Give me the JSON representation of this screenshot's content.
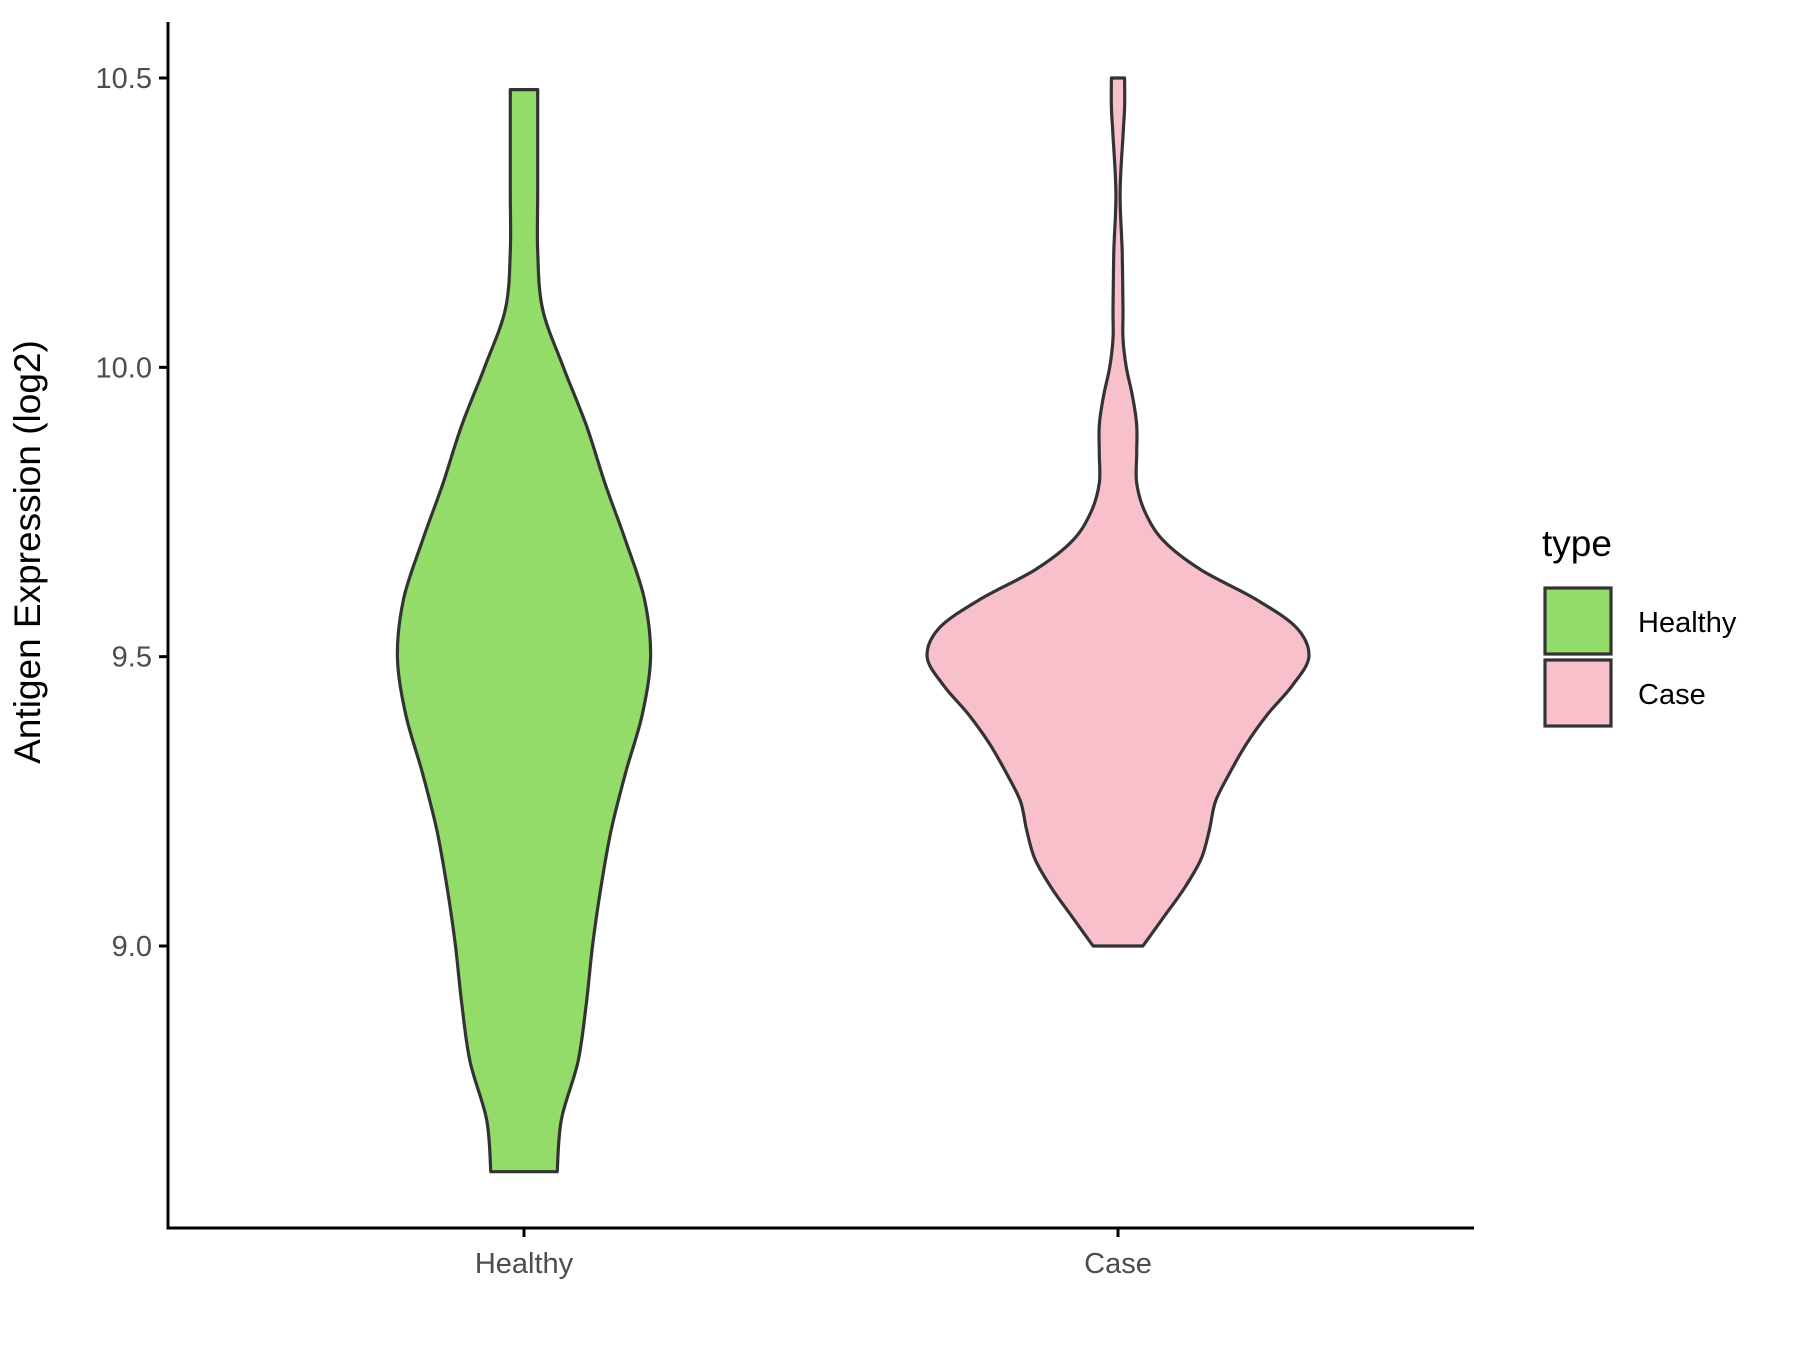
{
  "chart_data": {
    "type": "violin",
    "ylabel": "Antigen Expression (log2)",
    "xlabel": "",
    "ylim": [
      8.5,
      10.6
    ],
    "yticks": [
      "9.0",
      "9.5",
      "10.0",
      "10.5"
    ],
    "ytick_values": [
      9.0,
      9.5,
      10.0,
      10.5
    ],
    "categories": [
      "Healthy",
      "Case"
    ],
    "legend": {
      "title": "type",
      "position": "right",
      "entries": [
        "Healthy",
        "Case"
      ]
    },
    "grid": false,
    "series": [
      {
        "name": "Healthy",
        "color": "#93dc6a",
        "y_min": 8.61,
        "y_max": 10.48,
        "profile": [
          [
            8.61,
            0.08
          ],
          [
            8.7,
            0.09
          ],
          [
            8.8,
            0.13
          ],
          [
            8.9,
            0.15
          ],
          [
            9.0,
            0.165
          ],
          [
            9.1,
            0.185
          ],
          [
            9.2,
            0.21
          ],
          [
            9.3,
            0.245
          ],
          [
            9.4,
            0.285
          ],
          [
            9.5,
            0.305
          ],
          [
            9.6,
            0.29
          ],
          [
            9.7,
            0.245
          ],
          [
            9.8,
            0.195
          ],
          [
            9.9,
            0.15
          ],
          [
            10.0,
            0.095
          ],
          [
            10.1,
            0.045
          ],
          [
            10.2,
            0.033
          ],
          [
            10.3,
            0.033
          ],
          [
            10.4,
            0.033
          ],
          [
            10.48,
            0.033
          ]
        ]
      },
      {
        "name": "Case",
        "color": "#f8c0cb",
        "y_min": 9.0,
        "y_max": 10.5,
        "profile": [
          [
            9.0,
            0.06
          ],
          [
            9.05,
            0.11
          ],
          [
            9.1,
            0.16
          ],
          [
            9.15,
            0.2
          ],
          [
            9.2,
            0.22
          ],
          [
            9.25,
            0.235
          ],
          [
            9.3,
            0.27
          ],
          [
            9.35,
            0.31
          ],
          [
            9.4,
            0.36
          ],
          [
            9.45,
            0.42
          ],
          [
            9.5,
            0.46
          ],
          [
            9.55,
            0.43
          ],
          [
            9.6,
            0.33
          ],
          [
            9.65,
            0.2
          ],
          [
            9.7,
            0.11
          ],
          [
            9.75,
            0.065
          ],
          [
            9.8,
            0.045
          ],
          [
            9.85,
            0.045
          ],
          [
            9.9,
            0.045
          ],
          [
            9.95,
            0.035
          ],
          [
            10.0,
            0.02
          ],
          [
            10.05,
            0.012
          ],
          [
            10.1,
            0.012
          ],
          [
            10.2,
            0.01
          ],
          [
            10.3,
            0.005
          ],
          [
            10.4,
            0.012
          ],
          [
            10.45,
            0.016
          ],
          [
            10.5,
            0.016
          ]
        ]
      }
    ]
  }
}
